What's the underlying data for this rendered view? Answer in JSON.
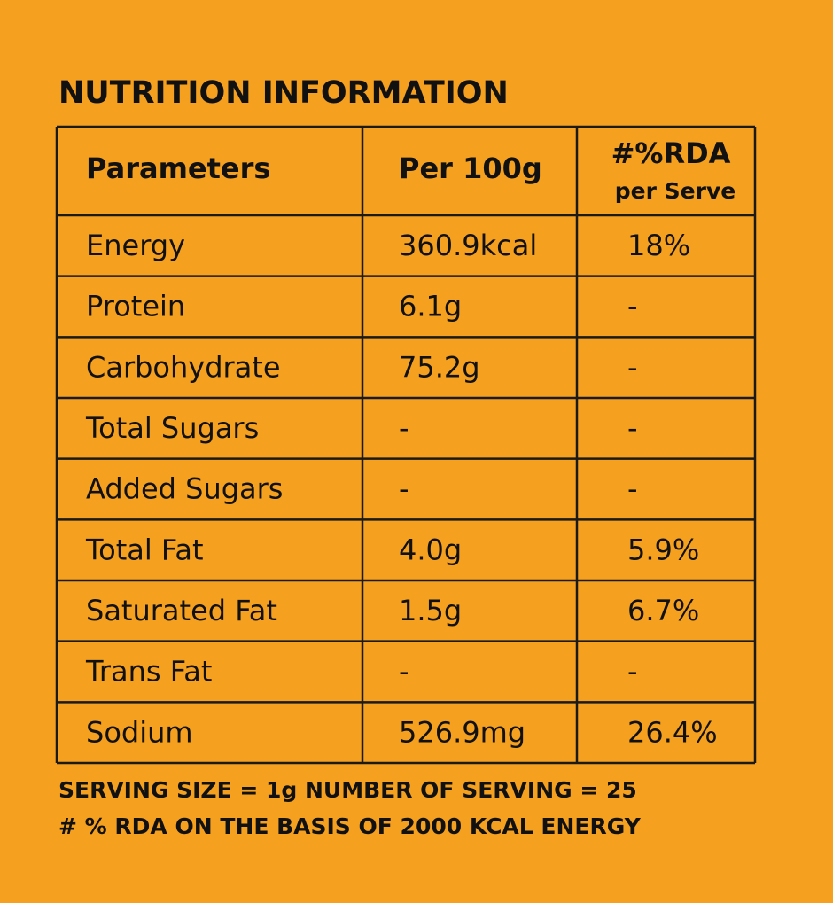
{
  "title": "NUTRITION INFORMATION",
  "table": {
    "header": [
      "Parameters",
      "Per 100g",
      [
        "#%RDA",
        "per Serve"
      ]
    ],
    "rows": [
      [
        "Energy",
        "360.9kcal",
        "18%"
      ],
      [
        "Protein",
        "6.1g",
        "-"
      ],
      [
        "Carbohydrate",
        "75.2g",
        "-"
      ],
      [
        "Total Sugars",
        "-",
        "-"
      ],
      [
        "Added Sugars",
        "-",
        "-"
      ],
      [
        "Total Fat",
        "4.0g",
        "5.9%"
      ],
      [
        "Saturated Fat",
        "1.5g",
        "6.7%"
      ],
      [
        "Trans Fat",
        "-",
        "-"
      ],
      [
        "Sodium",
        "526.9mg",
        "26.4%"
      ]
    ]
  },
  "footnotes": [
    "SERVING SIZE = 1g NUMBER OF SERVING = 25",
    "# % RDA ON THE BASIS OF 2000 KCAL ENERGY"
  ]
}
